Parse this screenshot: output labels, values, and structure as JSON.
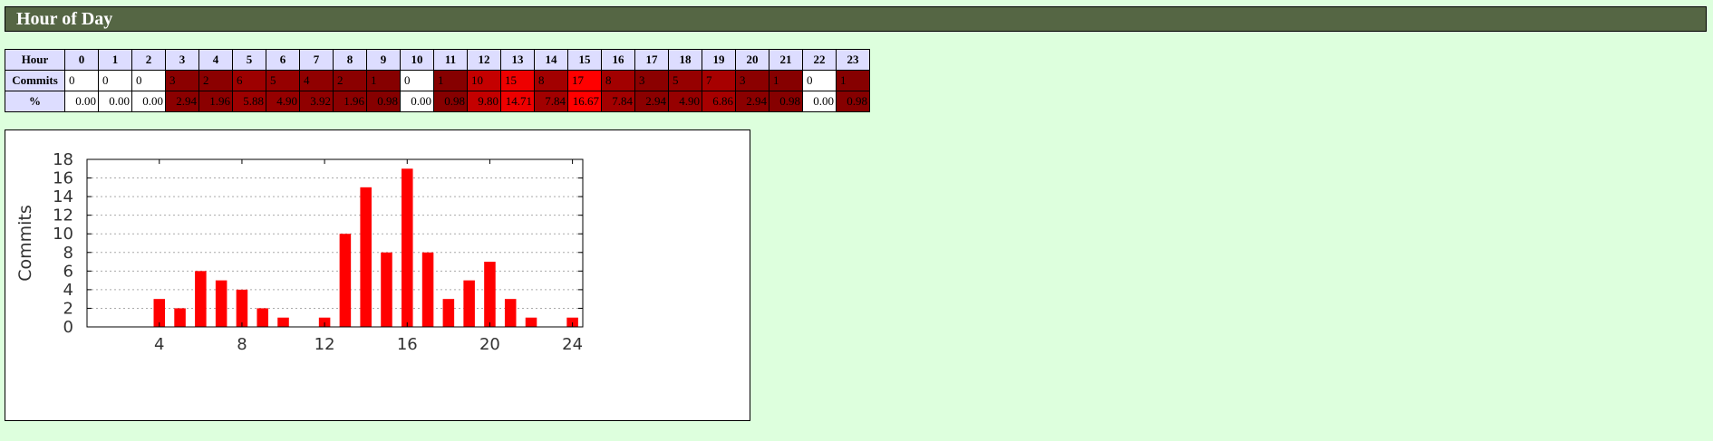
{
  "section": {
    "title": "Hour of Day"
  },
  "table": {
    "row_labels": {
      "hour": "Hour",
      "commits": "Commits",
      "percent": "%"
    },
    "hours": [
      "0",
      "1",
      "2",
      "3",
      "4",
      "5",
      "6",
      "7",
      "8",
      "9",
      "10",
      "11",
      "12",
      "13",
      "14",
      "15",
      "16",
      "17",
      "18",
      "19",
      "20",
      "21",
      "22",
      "23"
    ],
    "commits": [
      "0",
      "0",
      "0",
      "3",
      "2",
      "6",
      "5",
      "4",
      "2",
      "1",
      "0",
      "1",
      "10",
      "15",
      "8",
      "17",
      "8",
      "3",
      "5",
      "7",
      "3",
      "1",
      "0",
      "1"
    ],
    "percents": [
      "0.00",
      "0.00",
      "0.00",
      "2.94",
      "1.96",
      "5.88",
      "4.90",
      "3.92",
      "1.96",
      "0.98",
      "0.00",
      "0.98",
      "9.80",
      "14.71",
      "7.84",
      "16.67",
      "7.84",
      "2.94",
      "4.90",
      "6.86",
      "2.94",
      "0.98",
      "0.00",
      "0.98"
    ],
    "cell_colors": [
      "#ffffff",
      "#ffffff",
      "#ffffff",
      "#8b0000",
      "#8b0000",
      "#9d0000",
      "#960000",
      "#900000",
      "#8b0000",
      "#860000",
      "#ffffff",
      "#860000",
      "#c40000",
      "#ee0000",
      "#a20000",
      "#ff0000",
      "#a20000",
      "#8b0000",
      "#960000",
      "#a70000",
      "#8b0000",
      "#860000",
      "#ffffff",
      "#860000"
    ]
  },
  "chart_data": {
    "type": "bar",
    "x": [
      1,
      2,
      3,
      4,
      5,
      6,
      7,
      8,
      9,
      10,
      11,
      12,
      13,
      14,
      15,
      16,
      17,
      18,
      19,
      20,
      21,
      22,
      23,
      24
    ],
    "values": [
      0,
      0,
      0,
      3,
      2,
      6,
      5,
      4,
      2,
      1,
      0,
      1,
      10,
      15,
      8,
      17,
      8,
      3,
      5,
      7,
      3,
      1,
      0,
      1
    ],
    "title": "",
    "xlabel": "",
    "ylabel": "Commits",
    "xlim": [
      0.5,
      24.5
    ],
    "ylim": [
      0,
      18
    ],
    "xticks": [
      4,
      8,
      12,
      16,
      20,
      24
    ],
    "yticks": [
      0,
      2,
      4,
      6,
      8,
      10,
      12,
      14,
      16,
      18
    ],
    "grid": true,
    "bar_color": "#ff0000"
  }
}
